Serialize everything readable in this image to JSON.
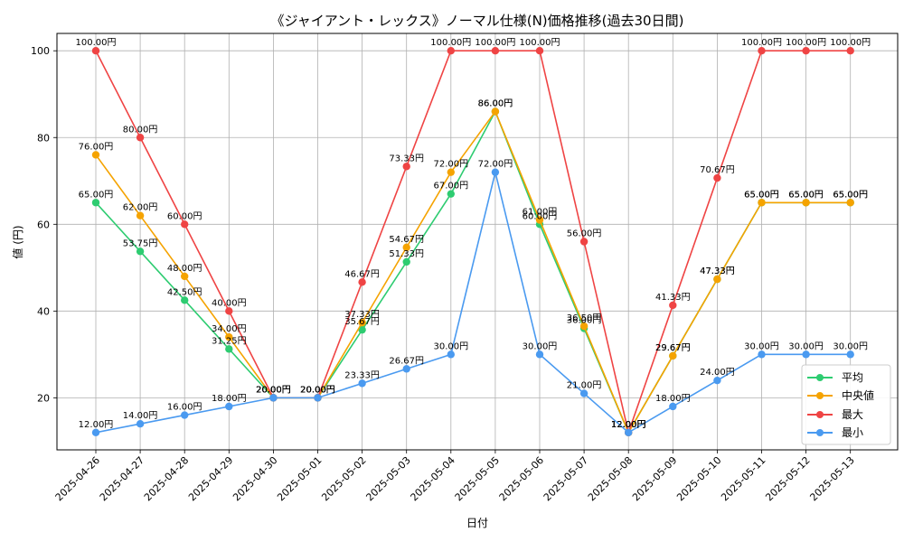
{
  "chart_data": {
    "type": "line",
    "title": "《ジャイアント・レックス》ノーマル仕様(N)価格推移(過去30日間)",
    "xlabel": "日付",
    "ylabel": "値 (円)",
    "unit_suffix": "円",
    "ylim": [
      8,
      104
    ],
    "yticks": [
      20,
      40,
      60,
      80,
      100
    ],
    "grid": true,
    "legend_position": "bottom-right",
    "categories": [
      "2025-04-26",
      "2025-04-27",
      "2025-04-28",
      "2025-04-29",
      "2025-04-30",
      "2025-05-01",
      "2025-05-02",
      "2025-05-03",
      "2025-05-04",
      "2025-05-05",
      "2025-05-06",
      "2025-05-07",
      "2025-05-08",
      "2025-05-09",
      "2025-05-10",
      "2025-05-11",
      "2025-05-12",
      "2025-05-13"
    ],
    "series": [
      {
        "name": "平均",
        "color": "#2ecc71",
        "values": [
          65.0,
          53.75,
          42.5,
          31.25,
          20.0,
          20.0,
          35.67,
          51.33,
          67.0,
          86.0,
          60.0,
          36.0,
          12.0,
          29.67,
          47.33,
          65.0,
          65.0,
          65.0
        ]
      },
      {
        "name": "中央値",
        "color": "#f5a300",
        "values": [
          76.0,
          62.0,
          48.0,
          34.0,
          20.0,
          20.0,
          37.33,
          54.67,
          72.0,
          86.0,
          61.0,
          36.5,
          12.0,
          29.67,
          47.33,
          65.0,
          65.0,
          65.0
        ]
      },
      {
        "name": "最大",
        "color": "#ef4444",
        "values": [
          100.0,
          80.0,
          60.0,
          40.0,
          20.0,
          20.0,
          46.67,
          73.33,
          100.0,
          100.0,
          100.0,
          56.0,
          12.0,
          41.33,
          70.67,
          100.0,
          100.0,
          100.0
        ]
      },
      {
        "name": "最小",
        "color": "#4a9af0",
        "values": [
          12.0,
          14.0,
          16.0,
          18.0,
          20.0,
          20.0,
          23.33,
          26.67,
          30.0,
          72.0,
          30.0,
          21.0,
          12.0,
          18.0,
          24.0,
          30.0,
          30.0,
          30.0
        ]
      }
    ]
  }
}
